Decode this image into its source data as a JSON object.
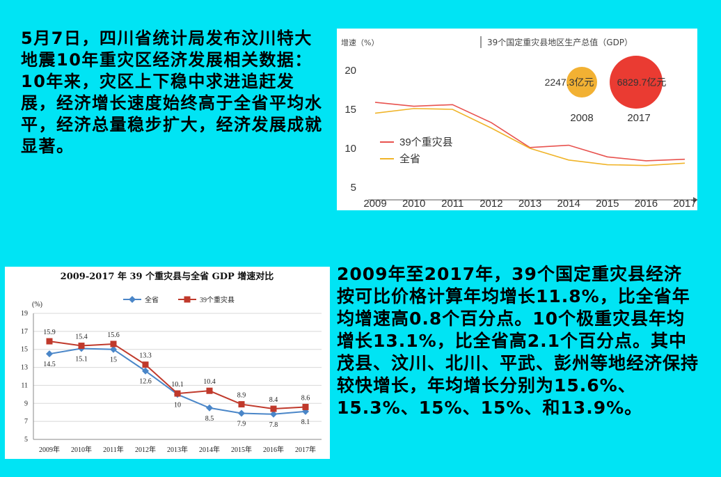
{
  "slide": {
    "top_paragraph": "5月7日，四川省统计局发布汶川特大地震10年重灾区经济发展相关数据：10年来，灾区上下稳中求进追赶发展，经济增长速度始终高于全省平均水平，经济总量稳步扩大，经济发展成就显著。",
    "bottom_paragraph": "2009年至2017年，39个国定重灾县经济按可比价格计算年均增长11.8%，比全省年均增速高0.8个百分点。10个极重灾县年均增长13.1%，比全省高2.1个百分点。其中茂县、汶川、北川、平武、彭州等地经济保持较快增长，年均增长分别为15.6%、15.3%、15%、15%、和13.9%。"
  },
  "colors": {
    "background": "#00e4f4",
    "zhongzai_a": "#e8524e",
    "quansheng_a": "#f0b429",
    "bubble_2008": "#f2b133",
    "bubble_2017": "#ea3b32",
    "quansheng_b": "#4a86c8",
    "zhongzai_b": "#c0392b"
  },
  "chart_data": [
    {
      "type": "line",
      "ylabel": "增速（%）",
      "side_title": "39个国定重灾县地区生产总值（GDP）",
      "x": [
        "2009",
        "2010",
        "2011",
        "2012",
        "2013",
        "2014",
        "2015",
        "2016",
        "2017"
      ],
      "ylim": [
        5,
        20
      ],
      "yticks": [
        5,
        10,
        15,
        20
      ],
      "grid": false,
      "legend_position": "left",
      "series": [
        {
          "name": "39个重灾县",
          "values": [
            15.9,
            15.4,
            15.6,
            13.3,
            10.1,
            10.4,
            8.9,
            8.4,
            8.6
          ]
        },
        {
          "name": "全省",
          "values": [
            14.5,
            15.1,
            15.0,
            12.6,
            10.0,
            8.5,
            7.9,
            7.8,
            8.1
          ]
        }
      ],
      "bubbles": [
        {
          "label": "2247.3亿元",
          "year": "2008",
          "value": 2247.3
        },
        {
          "label": "6829.7亿元",
          "year": "2017",
          "value": 6829.7
        }
      ]
    },
    {
      "type": "line",
      "title": "2009-2017 年 39 个重灾县与全省 GDP 增速对比",
      "ylabel": "(%)",
      "x": [
        "2009年",
        "2010年",
        "2011年",
        "2012年",
        "2013年",
        "2014年",
        "2015年",
        "2016年",
        "2017年"
      ],
      "ylim": [
        5,
        19
      ],
      "yticks": [
        5,
        7,
        9,
        11,
        13,
        15,
        17,
        19
      ],
      "grid": true,
      "legend_position": "top",
      "series": [
        {
          "name": "全省",
          "values": [
            14.5,
            15.1,
            15,
            12.6,
            10,
            8.5,
            7.9,
            7.8,
            8.1
          ],
          "labels": [
            "14.5",
            "15.1",
            "15",
            "12.6",
            "10",
            "8.5",
            "7.9",
            "7.8",
            "8.1"
          ]
        },
        {
          "name": "39个重灾县",
          "values": [
            15.9,
            15.4,
            15.6,
            13.3,
            10.1,
            10.4,
            8.9,
            8.4,
            8.6
          ],
          "labels": [
            "15.9",
            "15.4",
            "15.6",
            "13.3",
            "10.1",
            "10.4",
            "8.9",
            "8.4",
            "8.6"
          ]
        }
      ]
    }
  ]
}
